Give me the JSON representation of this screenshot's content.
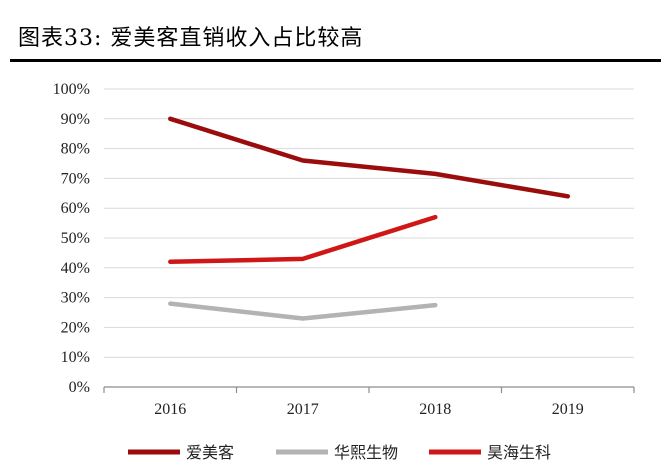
{
  "figure": {
    "title": "图表33: 爱美客直销收入占比较高"
  },
  "chart_data": {
    "type": "line",
    "title": "",
    "xlabel": "",
    "ylabel": "",
    "categories": [
      "2016",
      "2017",
      "2018",
      "2019"
    ],
    "ylim": [
      0,
      100
    ],
    "yticks": [
      "0%",
      "10%",
      "20%",
      "30%",
      "40%",
      "50%",
      "60%",
      "70%",
      "80%",
      "90%",
      "100%"
    ],
    "grid": true,
    "legend_position": "bottom",
    "series": [
      {
        "name": "爱美客",
        "color": "#9b0d0d",
        "values": [
          90,
          76,
          71.5,
          64
        ]
      },
      {
        "name": "华熙生物",
        "color": "#b3b3b3",
        "values": [
          28,
          23,
          27.5,
          null
        ]
      },
      {
        "name": "昊海生科",
        "color": "#d01717",
        "values": [
          42,
          43,
          57,
          null
        ]
      }
    ]
  }
}
